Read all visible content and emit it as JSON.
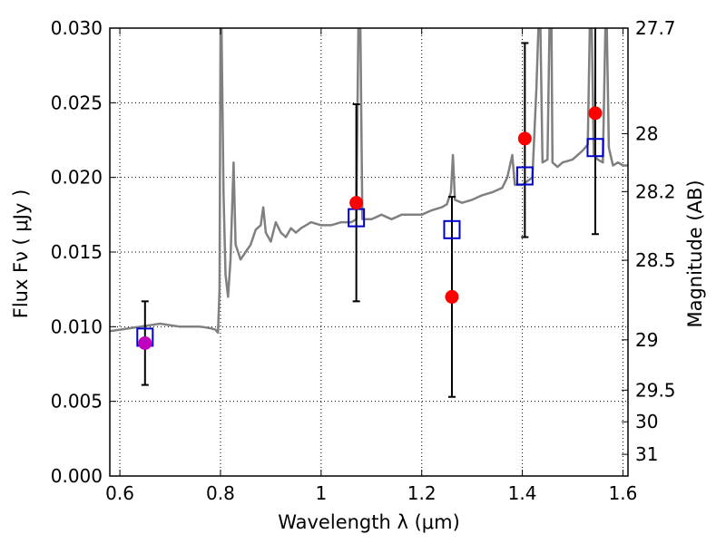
{
  "chart_data": {
    "type": "scatter",
    "xlabel": "Wavelength  λ (μm)",
    "ylabel": "Flux  Fν  ( μJy )",
    "ylabel_right": "Magnitude (AB)",
    "xlim": [
      0.58,
      1.61
    ],
    "ylim": [
      0.0,
      0.03
    ],
    "x_ticks": [
      0.6,
      0.8,
      1.0,
      1.2,
      1.4,
      1.6
    ],
    "x_tick_labels": [
      "0.6",
      "0.8",
      "1",
      "1.2",
      "1.4",
      "1.6"
    ],
    "y_ticks": [
      0.0,
      0.005,
      0.01,
      0.015,
      0.02,
      0.025,
      0.03
    ],
    "y_tick_labels": [
      "0.000",
      "0.005",
      "0.010",
      "0.015",
      "0.020",
      "0.025",
      "0.030"
    ],
    "right_ticks": [
      {
        "flux": 0.0301,
        "label": "27.7"
      },
      {
        "flux": 0.02293,
        "label": "28"
      },
      {
        "flux": 0.01905,
        "label": "28.2"
      },
      {
        "flux": 0.01445,
        "label": "28.5"
      },
      {
        "flux": 0.00912,
        "label": "29"
      },
      {
        "flux": 0.00575,
        "label": "29.5"
      },
      {
        "flux": 0.00363,
        "label": "30"
      },
      {
        "flux": 0.00145,
        "label": "31"
      }
    ],
    "grid": true,
    "spectrum": {
      "color": "#808080",
      "points": [
        [
          0.58,
          0.0097
        ],
        [
          0.6,
          0.0098
        ],
        [
          0.62,
          0.0099
        ],
        [
          0.64,
          0.01
        ],
        [
          0.66,
          0.0101
        ],
        [
          0.68,
          0.0102
        ],
        [
          0.7,
          0.0101
        ],
        [
          0.72,
          0.01
        ],
        [
          0.74,
          0.01
        ],
        [
          0.76,
          0.01
        ],
        [
          0.78,
          0.0099
        ],
        [
          0.79,
          0.0098
        ],
        [
          0.795,
          0.0096
        ],
        [
          0.798,
          0.0125
        ],
        [
          0.8,
          0.03
        ],
        [
          0.802,
          0.03
        ],
        [
          0.806,
          0.019
        ],
        [
          0.81,
          0.0135
        ],
        [
          0.815,
          0.012
        ],
        [
          0.82,
          0.0145
        ],
        [
          0.826,
          0.021
        ],
        [
          0.83,
          0.0155
        ],
        [
          0.84,
          0.0145
        ],
        [
          0.85,
          0.015
        ],
        [
          0.86,
          0.0155
        ],
        [
          0.87,
          0.0165
        ],
        [
          0.88,
          0.0168
        ],
        [
          0.885,
          0.018
        ],
        [
          0.89,
          0.0163
        ],
        [
          0.9,
          0.0157
        ],
        [
          0.91,
          0.017
        ],
        [
          0.92,
          0.0163
        ],
        [
          0.93,
          0.016
        ],
        [
          0.94,
          0.0166
        ],
        [
          0.95,
          0.0163
        ],
        [
          0.96,
          0.0166
        ],
        [
          0.97,
          0.0168
        ],
        [
          0.98,
          0.017
        ],
        [
          1.0,
          0.0168
        ],
        [
          1.02,
          0.0168
        ],
        [
          1.04,
          0.017
        ],
        [
          1.06,
          0.017
        ],
        [
          1.07,
          0.0172
        ],
        [
          1.074,
          0.03
        ],
        [
          1.078,
          0.03
        ],
        [
          1.082,
          0.0172
        ],
        [
          1.1,
          0.0172
        ],
        [
          1.12,
          0.0175
        ],
        [
          1.14,
          0.0172
        ],
        [
          1.16,
          0.0175
        ],
        [
          1.18,
          0.0175
        ],
        [
          1.2,
          0.0175
        ],
        [
          1.22,
          0.0178
        ],
        [
          1.24,
          0.018
        ],
        [
          1.25,
          0.0182
        ],
        [
          1.258,
          0.019
        ],
        [
          1.262,
          0.0215
        ],
        [
          1.266,
          0.0185
        ],
        [
          1.28,
          0.0183
        ],
        [
          1.3,
          0.0185
        ],
        [
          1.32,
          0.0188
        ],
        [
          1.34,
          0.019
        ],
        [
          1.36,
          0.0193
        ],
        [
          1.37,
          0.02
        ],
        [
          1.38,
          0.0215
        ],
        [
          1.385,
          0.0195
        ],
        [
          1.4,
          0.0195
        ],
        [
          1.42,
          0.02
        ],
        [
          1.428,
          0.026
        ],
        [
          1.432,
          0.03
        ],
        [
          1.436,
          0.03
        ],
        [
          1.44,
          0.021
        ],
        [
          1.45,
          0.0212
        ],
        [
          1.454,
          0.03
        ],
        [
          1.458,
          0.03
        ],
        [
          1.46,
          0.021
        ],
        [
          1.47,
          0.0207
        ],
        [
          1.48,
          0.021
        ],
        [
          1.5,
          0.0212
        ],
        [
          1.51,
          0.0215
        ],
        [
          1.52,
          0.0218
        ],
        [
          1.53,
          0.0222
        ],
        [
          1.534,
          0.03
        ],
        [
          1.538,
          0.03
        ],
        [
          1.542,
          0.0215
        ],
        [
          1.55,
          0.0212
        ],
        [
          1.56,
          0.021
        ],
        [
          1.565,
          0.03
        ],
        [
          1.568,
          0.03
        ],
        [
          1.572,
          0.022
        ],
        [
          1.58,
          0.0208
        ],
        [
          1.59,
          0.021
        ],
        [
          1.6,
          0.0208
        ],
        [
          1.61,
          0.0208
        ]
      ]
    },
    "model_points": {
      "color": "#0000cc",
      "marker": "open-square",
      "x": [
        0.65,
        1.07,
        1.26,
        1.405,
        1.545
      ],
      "y": [
        0.0093,
        0.0173,
        0.0165,
        0.0201,
        0.022
      ]
    },
    "observed_points": [
      {
        "x": 0.65,
        "y": 0.0089,
        "err_low": 0.0061,
        "err_high": 0.0117,
        "color": "#bf00bf"
      },
      {
        "x": 1.07,
        "y": 0.0183,
        "err_low": 0.0117,
        "err_high": 0.0249,
        "color": "#ff0000"
      },
      {
        "x": 1.26,
        "y": 0.012,
        "err_low": 0.0053,
        "err_high": 0.0187,
        "color": "#ff0000"
      },
      {
        "x": 1.405,
        "y": 0.0226,
        "err_low": 0.016,
        "err_high": 0.029,
        "color": "#ff0000"
      },
      {
        "x": 1.545,
        "y": 0.0243,
        "err_low": 0.0162,
        "err_high": 0.0305,
        "color": "#ff0000"
      }
    ]
  }
}
